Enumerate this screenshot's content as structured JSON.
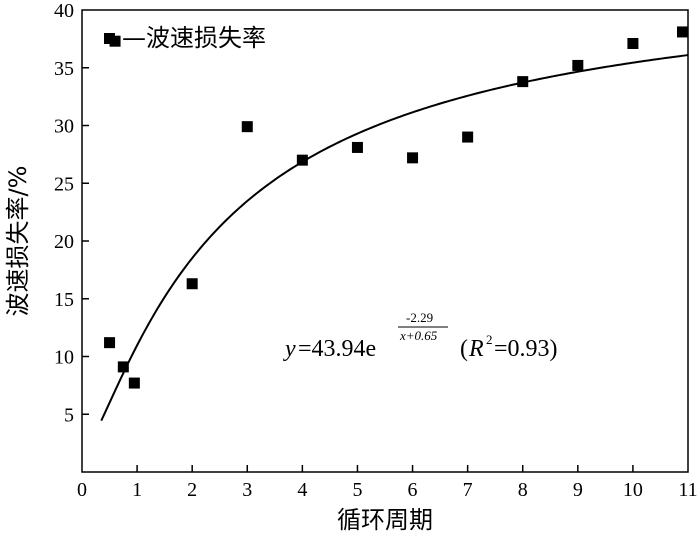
{
  "chart_data": {
    "type": "scatter",
    "xlabel": "循环周期",
    "ylabel": "波速损失率/%",
    "xlim": [
      0,
      11
    ],
    "ylim": [
      0,
      40
    ],
    "xticks": [
      "0",
      "1",
      "2",
      "3",
      "4",
      "5",
      "6",
      "7",
      "8",
      "9",
      "10",
      "11"
    ],
    "yticks": [
      "5",
      "10",
      "15",
      "20",
      "25",
      "30",
      "35",
      "40"
    ],
    "legend": {
      "position": "top-left",
      "label": "—波速损失率"
    },
    "series": [
      {
        "name": "波速损失率",
        "points": [
          {
            "x": 0.5,
            "y": 11.2
          },
          {
            "x": 0.6,
            "y": 37.3
          },
          {
            "x": 0.75,
            "y": 9.1
          },
          {
            "x": 0.95,
            "y": 7.7
          },
          {
            "x": 2.0,
            "y": 16.3
          },
          {
            "x": 3.0,
            "y": 29.9
          },
          {
            "x": 4.0,
            "y": 27.0
          },
          {
            "x": 5.0,
            "y": 28.1
          },
          {
            "x": 6.0,
            "y": 27.2
          },
          {
            "x": 7.0,
            "y": 29.0
          },
          {
            "x": 8.0,
            "y": 33.8
          },
          {
            "x": 9.0,
            "y": 35.2
          },
          {
            "x": 10.0,
            "y": 37.1
          },
          {
            "x": 10.9,
            "y": 38.1
          }
        ]
      }
    ],
    "fit": {
      "a": 43.94,
      "b": -2.29,
      "c": 0.65,
      "x_range": [
        0.35,
        11
      ],
      "equation": {
        "y_var": "y",
        "lhs": "=43.94e",
        "numerator": "-2.29",
        "denominator": "x+0.65",
        "r_open": "(",
        "r_var": "R",
        "r_exp": "2",
        "r_rest": "=0.93)"
      }
    }
  }
}
